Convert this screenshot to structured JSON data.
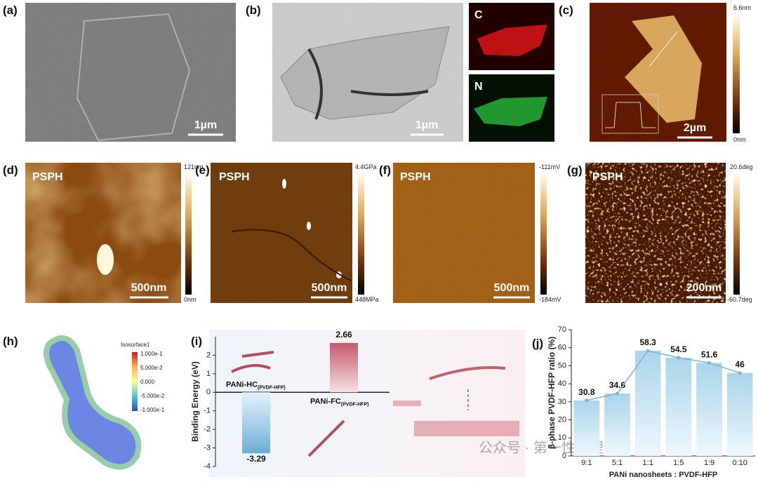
{
  "panels": {
    "a": {
      "label": "(a)",
      "scale_bar": "1µm"
    },
    "b": {
      "label": "(b)",
      "scale_bar": "1µm",
      "map_labels": [
        "C",
        "N"
      ]
    },
    "c": {
      "label": "(c)",
      "scale_bar": "2µm",
      "colorbar": [
        "6.6nm",
        "0nm"
      ]
    },
    "d": {
      "label": "(d)",
      "sample": "PSPH",
      "scale_bar": "500nm",
      "colorbar": [
        "121nm",
        "0nm"
      ]
    },
    "e": {
      "label": "(e)",
      "sample": "PSPH",
      "scale_bar": "500nm",
      "colorbar": [
        "4.4GPa",
        "448MPa"
      ]
    },
    "f": {
      "label": "(f)",
      "sample": "PSPH",
      "scale_bar": "500nm",
      "colorbar": [
        "-111mV",
        "-184mV"
      ]
    },
    "g": {
      "label": "(g)",
      "sample": "PSPH",
      "scale_bar": "200nm",
      "colorbar": [
        "20.6deg",
        "-60.7deg"
      ]
    },
    "h": {
      "label": "(h)",
      "legend_title": "Isosurface1",
      "legend_ticks": [
        "1.000e-1",
        "5.000e-2",
        "0.000",
        "-5.000e-2",
        "-1.000e-1"
      ]
    }
  },
  "chart_data": [
    {
      "type": "bar",
      "label": "(i)",
      "y_label": "Binding Energy (eV)",
      "categories": [
        "PANi-HC",
        "PANi-FC"
      ],
      "category_subscripts": [
        "(PVDF-HFP)",
        "(PVDF-HFP)"
      ],
      "values": [
        -3.29,
        2.66
      ],
      "colors": [
        "#6aaed6",
        "#c45a6c"
      ],
      "ylim": [
        -4,
        3
      ],
      "yticks": [
        -4,
        -3,
        -2,
        -1,
        0,
        1,
        2
      ]
    },
    {
      "type": "bar",
      "label": "(j)",
      "y_label": "β-phase PVDF-HFP ratio (%)",
      "x_label": "PANi nanosheets : PVDF-HFP",
      "categories": [
        "9:1",
        "5:1",
        "1:1",
        "1:5",
        "1:9",
        "0:10"
      ],
      "values": [
        30.8,
        34.6,
        58.3,
        54.5,
        51.6,
        46
      ],
      "color": "#a9d5ea",
      "line_overlay": true,
      "line_color": "#7fb3cc",
      "ylim": [
        0,
        70
      ],
      "yticks": [
        0,
        10,
        20,
        30,
        40,
        50,
        60,
        70
      ]
    }
  ],
  "watermark": "公众号 · 第一性原理计算"
}
